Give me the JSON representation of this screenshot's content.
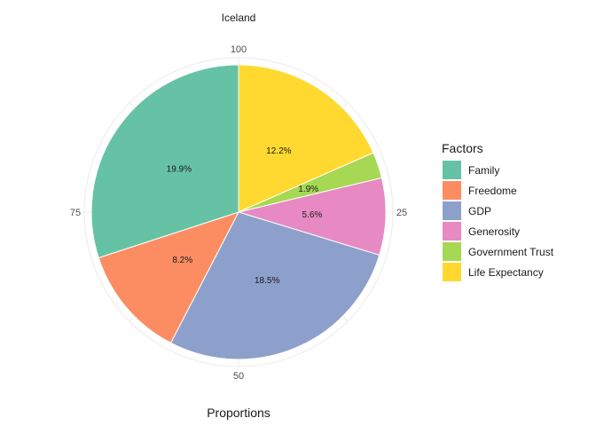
{
  "chart_data": {
    "type": "pie",
    "title": "Iceland",
    "xlabel": "Proportions",
    "legend": {
      "title": "Factors",
      "position": "right"
    },
    "radial_ticks": [
      "100",
      "25",
      "50",
      "75"
    ],
    "slices": [
      {
        "name": "Life Expectancy",
        "value": 12.2,
        "label": "12.2%",
        "color": "#FFD92F"
      },
      {
        "name": "Government Trust",
        "value": 1.9,
        "label": "1.9%",
        "color": "#A6D854"
      },
      {
        "name": "Generosity",
        "value": 5.6,
        "label": "5.6%",
        "color": "#E78AC3"
      },
      {
        "name": "GDP",
        "value": 18.5,
        "label": "18.5%",
        "color": "#8DA0CB"
      },
      {
        "name": "Freedome",
        "value": 8.2,
        "label": "8.2%",
        "color": "#FC8D62"
      },
      {
        "name": "Family",
        "value": 19.9,
        "label": "19.9%",
        "color": "#66C2A5"
      }
    ],
    "legend_order": [
      "Family",
      "Freedome",
      "GDP",
      "Generosity",
      "Government Trust",
      "Life Expectancy"
    ],
    "grid": true
  }
}
